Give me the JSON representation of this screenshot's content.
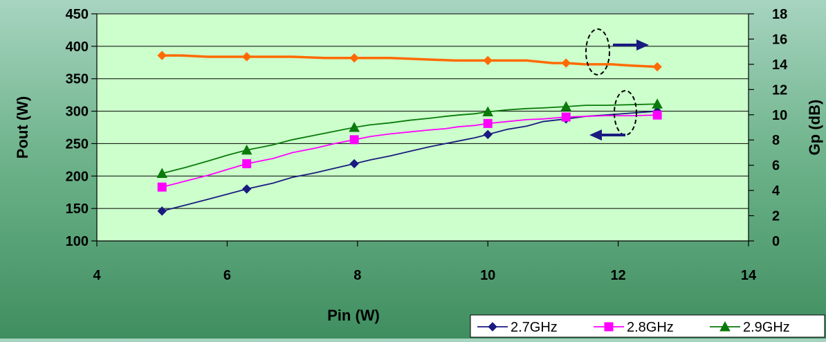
{
  "chart_data": {
    "type": "line",
    "xlabel": "Pin (W)",
    "ylabel": "Pout (W)",
    "y2label": "Gp (dB)",
    "xlim": [
      4,
      14
    ],
    "ylim": [
      100,
      450
    ],
    "y2lim": [
      0,
      18
    ],
    "x_ticks": [
      "4",
      "6",
      "8",
      "10",
      "12",
      "14"
    ],
    "y_ticks": [
      "100",
      "150",
      "200",
      "250",
      "300",
      "350",
      "400",
      "450"
    ],
    "y2_ticks": [
      "0",
      "2",
      "4",
      "6",
      "8",
      "10",
      "12",
      "14",
      "16",
      "18"
    ],
    "legend_position": "bottom-right",
    "grid": "horizontal",
    "series": [
      {
        "name": "2.7GHz",
        "color": "#1a1a80",
        "marker": "diamond",
        "axis": "left",
        "x": [
          5.0,
          5.35,
          5.7,
          6.0,
          6.3,
          6.7,
          7.0,
          7.35,
          7.65,
          7.95,
          8.2,
          8.5,
          8.8,
          9.1,
          9.35,
          9.55,
          9.8,
          10.0,
          10.3,
          10.6,
          10.85,
          11.2,
          11.5,
          11.8,
          12.2,
          12.6
        ],
        "y": [
          146,
          155,
          164,
          172,
          180,
          189,
          198,
          205,
          212,
          219,
          225,
          231,
          238,
          245,
          250,
          254,
          259,
          264,
          272,
          277,
          284,
          288,
          292,
          294,
          297,
          300
        ],
        "markers_at": [
          5.0,
          6.3,
          7.95,
          10.0,
          11.2,
          12.6
        ]
      },
      {
        "name": "2.8GHz",
        "color": "#ff00ff",
        "marker": "square",
        "axis": "left",
        "x": [
          5.0,
          5.35,
          5.7,
          6.0,
          6.3,
          6.7,
          7.0,
          7.35,
          7.65,
          7.95,
          8.2,
          8.5,
          8.8,
          9.1,
          9.35,
          9.55,
          9.8,
          10.0,
          10.3,
          10.6,
          10.85,
          11.2,
          11.5,
          11.8,
          12.2,
          12.6
        ],
        "y": [
          183,
          192,
          201,
          210,
          219,
          227,
          236,
          243,
          250,
          256,
          261,
          265,
          268,
          271,
          273,
          276,
          278,
          281,
          284,
          287,
          288,
          291,
          292,
          293,
          293,
          294
        ],
        "markers_at": [
          5.0,
          6.3,
          7.95,
          10.0,
          11.2,
          12.6
        ]
      },
      {
        "name": "2.9GHz",
        "color": "#0a7a0a",
        "marker": "triangle",
        "axis": "left",
        "x": [
          5.0,
          5.35,
          5.7,
          6.0,
          6.3,
          6.7,
          7.0,
          7.35,
          7.65,
          7.95,
          8.2,
          8.5,
          8.8,
          9.1,
          9.35,
          9.55,
          9.8,
          10.0,
          10.3,
          10.6,
          10.85,
          11.2,
          11.5,
          11.8,
          12.2,
          12.6
        ],
        "y": [
          204,
          213,
          223,
          232,
          240,
          248,
          256,
          263,
          269,
          275,
          279,
          282,
          286,
          289,
          292,
          294,
          296,
          299,
          302,
          304,
          305,
          307,
          309,
          309,
          310,
          311
        ],
        "markers_at": [
          5.0,
          6.3,
          7.95,
          10.0,
          11.2,
          12.6
        ]
      },
      {
        "color": "#ff6a00",
        "marker": "diamond",
        "axis": "right",
        "x": [
          5.0,
          5.3,
          5.7,
          6.3,
          7.0,
          7.5,
          7.95,
          8.5,
          9.0,
          9.5,
          10.0,
          10.6,
          11.0,
          11.2,
          11.5,
          11.9,
          12.2,
          12.6
        ],
        "y": [
          14.7,
          14.7,
          14.6,
          14.6,
          14.6,
          14.5,
          14.5,
          14.5,
          14.4,
          14.3,
          14.3,
          14.3,
          14.1,
          14.1,
          14.0,
          14.0,
          13.9,
          13.8
        ],
        "markers_at": [
          5.0,
          6.3,
          7.95,
          10.0,
          11.2,
          12.6
        ]
      }
    ]
  },
  "annotations": {
    "ellipse_color": "#000000",
    "arrow_color": "#1a1a80"
  }
}
